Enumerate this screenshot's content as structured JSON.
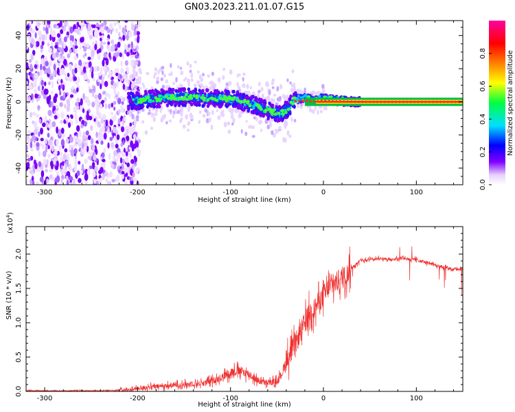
{
  "chart_data": [
    {
      "type": "heatmap",
      "title": "GN03.2023.211.01.07.G15",
      "xlabel": "Height of straight line (km)",
      "ylabel": "Frequency (Hz)",
      "xlim": [
        -320,
        150
      ],
      "ylim": [
        -50,
        49
      ],
      "x_ticks": [
        -300,
        -200,
        -100,
        0,
        100
      ],
      "y_ticks": [
        -40,
        -20,
        0,
        20,
        40
      ],
      "colorbar": {
        "label": "Normalized spectral amplitude",
        "range": [
          0,
          1
        ],
        "ticks": [
          "0.0",
          "0.2",
          "0.4",
          "0.6",
          "0.8"
        ],
        "colors": [
          "#ffffff",
          "#8000ff",
          "#0000ff",
          "#00e0ff",
          "#00ff40",
          "#ffff00",
          "#ff8000",
          "#ff0000",
          "#ff00a0"
        ]
      },
      "ridge": {
        "x": [
          -210,
          -190,
          -170,
          -150,
          -130,
          -110,
          -95,
          -80,
          -65,
          -55,
          -45,
          -38,
          -32,
          -25,
          -18,
          -10,
          -5,
          0,
          10,
          20,
          40,
          60,
          80,
          100,
          120,
          150
        ],
        "y": [
          0,
          1.5,
          2.5,
          3,
          2.5,
          2,
          1.5,
          -1,
          -4,
          -6,
          -7,
          -4,
          1,
          2.5,
          2,
          0.5,
          1,
          2,
          1,
          0.5,
          0,
          0,
          0,
          0,
          0,
          0
        ]
      }
    },
    {
      "type": "line",
      "xlabel": "Height of straight line (km)",
      "ylabel": "SNR (10 * v/v)",
      "y_exponent": "(x10",
      "y_exponent_power": "4",
      "y_exponent_close": ")",
      "xlim": [
        -320,
        150
      ],
      "ylim": [
        0,
        2.4
      ],
      "x_ticks": [
        -300,
        -200,
        -100,
        0,
        100
      ],
      "y_ticks": [
        "0.0",
        "0.5",
        "1.0",
        "1.5",
        "2.0"
      ],
      "color": "#f03030",
      "series": [
        {
          "x": [
            -320,
            -250,
            -210,
            -190,
            -170,
            -150,
            -130,
            -120,
            -110,
            -100,
            -90,
            -80,
            -70,
            -60,
            -50,
            -45,
            -40,
            -35,
            -30,
            -25,
            -20,
            -15,
            -10,
            -5,
            0,
            5,
            10,
            15,
            20,
            25,
            30,
            40,
            50,
            60,
            70,
            80,
            90,
            100,
            110,
            120,
            130,
            140,
            150
          ],
          "y": [
            0.01,
            0.01,
            0.02,
            0.06,
            0.08,
            0.1,
            0.12,
            0.15,
            0.2,
            0.28,
            0.3,
            0.25,
            0.15,
            0.12,
            0.15,
            0.25,
            0.45,
            0.55,
            0.7,
            0.85,
            1.0,
            1.15,
            1.2,
            1.3,
            1.4,
            1.5,
            1.55,
            1.6,
            1.65,
            1.7,
            1.8,
            1.9,
            1.93,
            1.93,
            1.92,
            1.93,
            1.93,
            1.92,
            1.88,
            1.84,
            1.81,
            1.78,
            1.77
          ]
        }
      ]
    }
  ]
}
